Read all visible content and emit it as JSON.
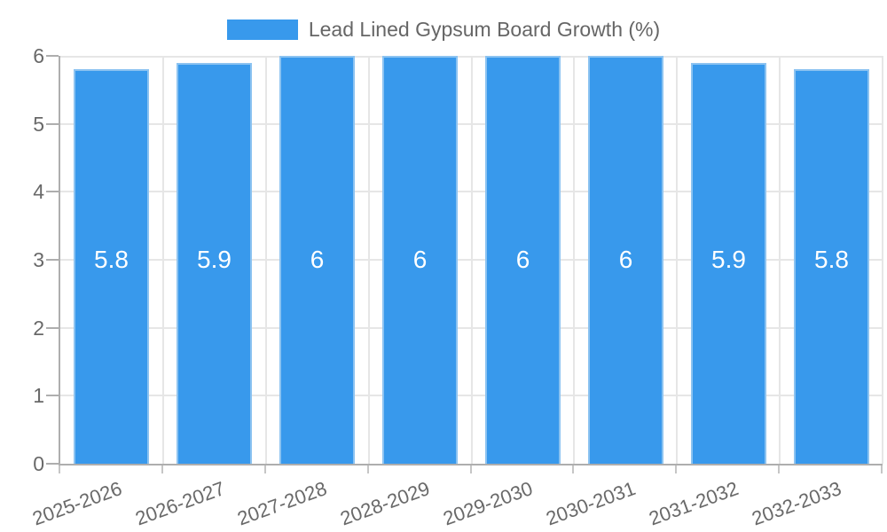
{
  "chart_data": {
    "type": "bar",
    "title": "Lead Lined Gypsum Board Growth (%)",
    "legend_position": "top",
    "categories": [
      "2025-2026",
      "2026-2027",
      "2027-2028",
      "2028-2029",
      "2029-2030",
      "2030-2031",
      "2031-2032",
      "2032-2033"
    ],
    "series": [
      {
        "name": "Lead Lined Gypsum Board Growth (%)",
        "values": [
          5.8,
          5.9,
          6,
          6,
          6,
          6,
          5.9,
          5.8
        ]
      }
    ],
    "xlabel": "",
    "ylabel": "",
    "ylim": [
      0,
      6
    ],
    "yticks": [
      0,
      1,
      2,
      3,
      4,
      5,
      6
    ],
    "grid": true,
    "x_label_rotation_deg": -20,
    "colors": {
      "background": "#FFFFFF",
      "bar_fill": "#3899EC",
      "bar_border": "#8CC3F1",
      "bar_value_text": "#FFFFFF",
      "grid_line": "#E6E6E6",
      "axis_line": "#AEAEAE",
      "x_tick_mark": "#C6C6C6",
      "tick_text": "#696969",
      "legend_text": "#666666"
    }
  }
}
